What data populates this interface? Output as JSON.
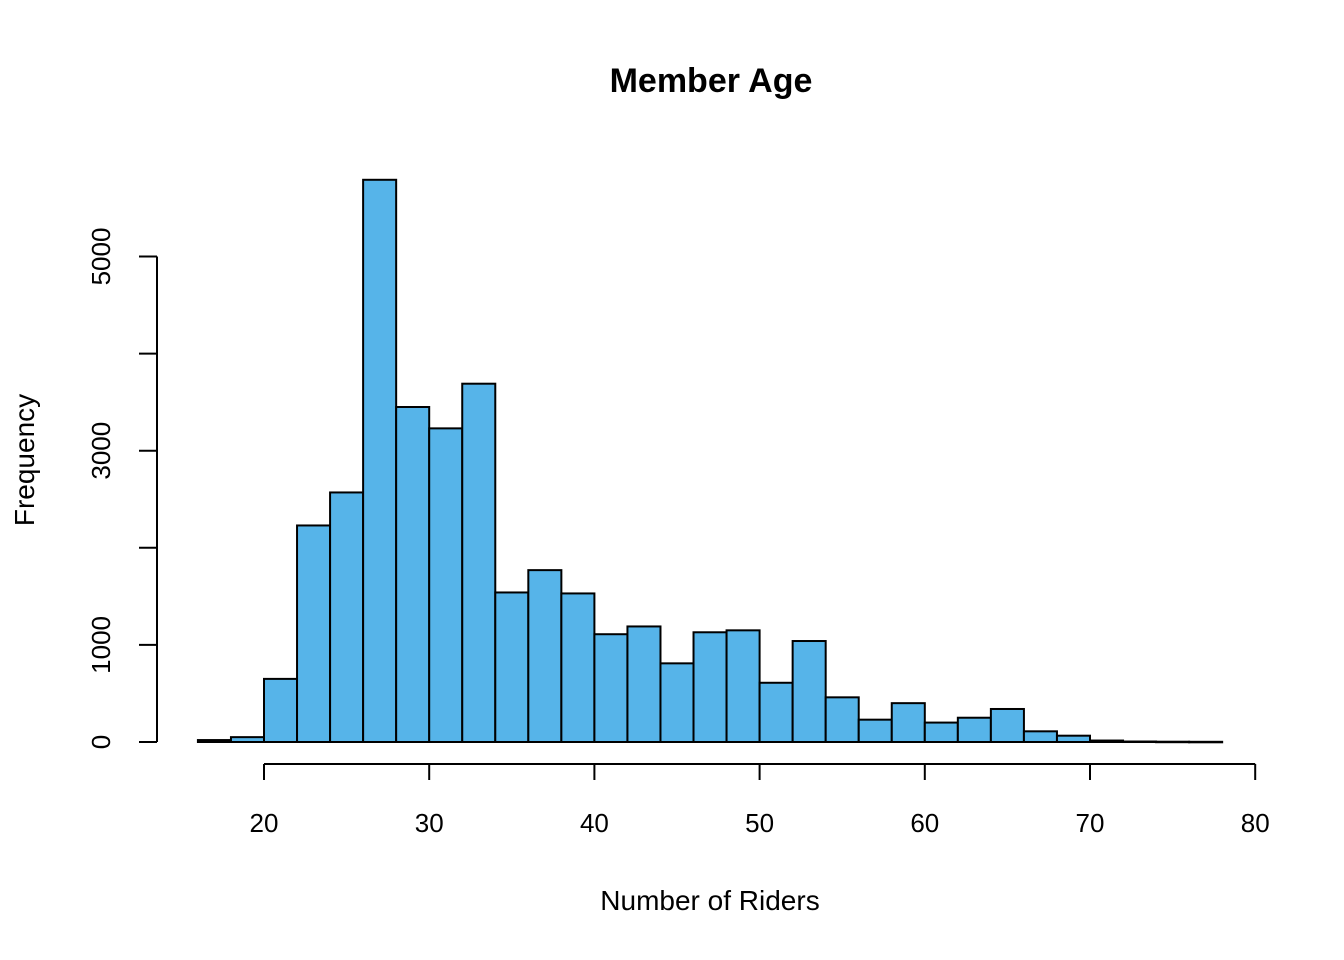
{
  "chart_data": {
    "type": "bar",
    "title": "Member Age",
    "xlabel": "Number of Riders",
    "ylabel": "Frequency",
    "bar_color": "#56B4E9",
    "edge_color": "#000000",
    "xlim": [
      15,
      80
    ],
    "ylim": [
      0,
      5800
    ],
    "x_ticks": [
      20,
      30,
      40,
      50,
      60,
      70,
      80
    ],
    "y_ticks": [
      0,
      1000,
      2000,
      3000,
      4000,
      5000
    ],
    "y_tick_labels": [
      "0",
      "1000",
      "",
      "3000",
      "",
      "5000"
    ],
    "bin_width": 2,
    "bins": [
      {
        "start": 16,
        "end": 18,
        "value": 20
      },
      {
        "start": 18,
        "end": 20,
        "value": 50
      },
      {
        "start": 20,
        "end": 22,
        "value": 650
      },
      {
        "start": 22,
        "end": 24,
        "value": 2230
      },
      {
        "start": 24,
        "end": 26,
        "value": 2570
      },
      {
        "start": 26,
        "end": 28,
        "value": 5790
      },
      {
        "start": 28,
        "end": 30,
        "value": 3450
      },
      {
        "start": 30,
        "end": 32,
        "value": 3230
      },
      {
        "start": 32,
        "end": 34,
        "value": 3690
      },
      {
        "start": 34,
        "end": 36,
        "value": 1540
      },
      {
        "start": 36,
        "end": 38,
        "value": 1770
      },
      {
        "start": 38,
        "end": 40,
        "value": 1530
      },
      {
        "start": 40,
        "end": 42,
        "value": 1110
      },
      {
        "start": 42,
        "end": 44,
        "value": 1190
      },
      {
        "start": 44,
        "end": 46,
        "value": 810
      },
      {
        "start": 46,
        "end": 48,
        "value": 1130
      },
      {
        "start": 48,
        "end": 50,
        "value": 1150
      },
      {
        "start": 50,
        "end": 52,
        "value": 610
      },
      {
        "start": 52,
        "end": 54,
        "value": 1040
      },
      {
        "start": 54,
        "end": 56,
        "value": 460
      },
      {
        "start": 56,
        "end": 58,
        "value": 230
      },
      {
        "start": 58,
        "end": 60,
        "value": 400
      },
      {
        "start": 60,
        "end": 62,
        "value": 200
      },
      {
        "start": 62,
        "end": 64,
        "value": 250
      },
      {
        "start": 64,
        "end": 66,
        "value": 340
      },
      {
        "start": 66,
        "end": 68,
        "value": 110
      },
      {
        "start": 68,
        "end": 70,
        "value": 65
      },
      {
        "start": 70,
        "end": 72,
        "value": 15
      },
      {
        "start": 72,
        "end": 74,
        "value": 5
      },
      {
        "start": 74,
        "end": 76,
        "value": 3
      },
      {
        "start": 76,
        "end": 78,
        "value": 2
      }
    ]
  }
}
